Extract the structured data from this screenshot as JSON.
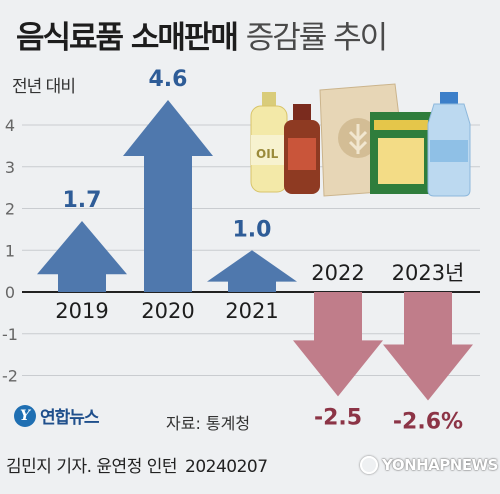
{
  "header": {
    "title_main": "음식료품 소매판매",
    "title_sub": "증감률 추이",
    "y_axis_label": "전년 대비"
  },
  "source": "자료: 통계청",
  "logo_text": "연합뉴스",
  "credit": "김민지 기자. 윤연정 인턴",
  "date": "20240207",
  "watermark": "YONHAPNEWS",
  "colors": {
    "positive": "#4f78ad",
    "negative": "#c07d8a",
    "grid": "#c9ccd0",
    "background": "#eef0f2"
  },
  "chart_data": {
    "type": "bar",
    "categories": [
      "2019",
      "2020",
      "2021",
      "2022",
      "2023년"
    ],
    "values": [
      1.7,
      4.6,
      1.0,
      -2.5,
      -2.6
    ],
    "value_labels": [
      "1.7",
      "4.6",
      "1.0",
      "-2.5",
      "-2.6%"
    ],
    "ylim": [
      -2.5,
      5
    ],
    "yticks": [
      4,
      3,
      2,
      1,
      0,
      -1,
      -2
    ],
    "grid": true,
    "mark_style": "arrow"
  }
}
